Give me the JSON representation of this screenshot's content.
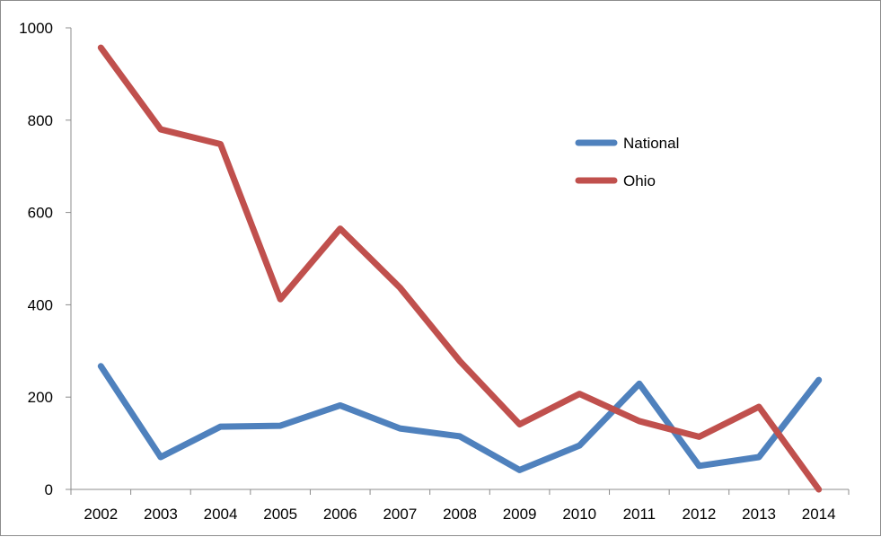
{
  "chart_data": {
    "type": "line",
    "title": "",
    "xlabel": "",
    "ylabel": "",
    "categories": [
      "2002",
      "2003",
      "2004",
      "2005",
      "2006",
      "2007",
      "2008",
      "2009",
      "2010",
      "2011",
      "2012",
      "2013",
      "2014"
    ],
    "ylim": [
      0,
      1000
    ],
    "yticks": [
      "0",
      "200",
      "400",
      "600",
      "800",
      "1000"
    ],
    "grid": false,
    "legend_position": "right",
    "series": [
      {
        "name": "National",
        "color": "#4f81bd",
        "values": [
          267,
          70,
          136,
          138,
          182,
          132,
          115,
          42,
          95,
          229,
          51,
          70,
          237
        ]
      },
      {
        "name": "Ohio",
        "color": "#c0504d",
        "values": [
          957,
          780,
          748,
          412,
          565,
          437,
          278,
          141,
          207,
          148,
          114,
          179,
          0
        ]
      }
    ]
  }
}
